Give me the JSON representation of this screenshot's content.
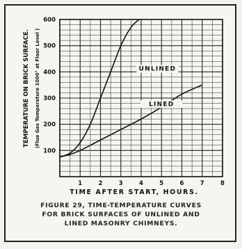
{
  "chart_data": {
    "type": "line",
    "ylabel": "TEMPERATURE ON BRICK SURFACE.",
    "ylabel_note": "(Flue Gas Temperature 1000° at Floor Level )",
    "xlabel": "TIME AFTER START, HOURS.",
    "xlim": [
      0,
      8
    ],
    "ylim": [
      0,
      600
    ],
    "x_ticks": [
      "1",
      "2",
      "3",
      "4",
      "5",
      "6",
      "7",
      "8"
    ],
    "y_ticks": [
      "100",
      "200",
      "300",
      "400",
      "500",
      "600"
    ],
    "grid": true,
    "series": [
      {
        "name": "UNLINED",
        "x": [
          0,
          0.5,
          1,
          1.5,
          2,
          2.5,
          3,
          3.5,
          3.9
        ],
        "y": [
          75,
          90,
          130,
          200,
          300,
          400,
          500,
          570,
          600
        ]
      },
      {
        "name": "LINED",
        "x": [
          0,
          0.5,
          1,
          2,
          3,
          4,
          5,
          6,
          7
        ],
        "y": [
          75,
          85,
          100,
          140,
          180,
          220,
          265,
          315,
          350
        ]
      }
    ]
  },
  "caption": {
    "line1": "FIGURE 29, TIME-TEMPERATURE CURVES",
    "line2": "FOR BRICK SURFACES OF UNLINED AND",
    "line3": "LINED MASONRY CHIMNEYS."
  }
}
